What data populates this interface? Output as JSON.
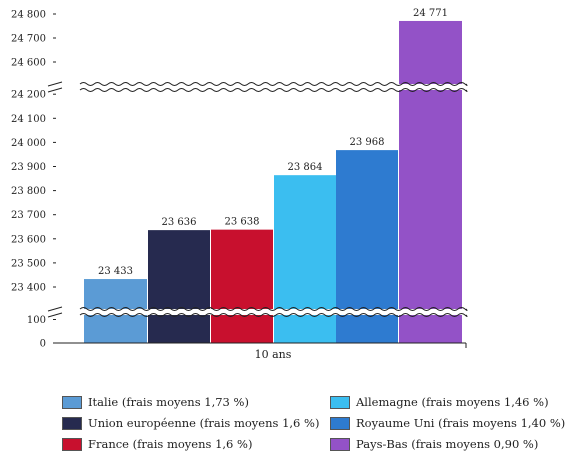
{
  "chart_data": {
    "type": "bar",
    "x_category": "10 ans",
    "y_axis": {
      "lower_segment_ticks": [
        0,
        100
      ],
      "middle_segment_ticks": [
        23400,
        23500,
        23600,
        23700,
        23800,
        23900,
        24000,
        24100,
        24200
      ],
      "upper_segment_ticks": [
        24600,
        24700,
        24800
      ],
      "axis_breaks": true
    },
    "series": [
      {
        "name": "Italie (frais moyens 1,73 %)",
        "value": 23433,
        "label": "23 433",
        "color": "#5b9bd5"
      },
      {
        "name": "Union européenne (frais moyens 1,6 %)",
        "value": 23636,
        "label": "23 636",
        "color": "#262a4f"
      },
      {
        "name": "France (frais moyens 1,6 %)",
        "value": 23638,
        "label": "23 638",
        "color": "#c8102e"
      },
      {
        "name": "Allemagne (frais moyens 1,46 %)",
        "value": 23864,
        "label": "23 864",
        "color": "#3bbef0"
      },
      {
        "name": "Royaume Uni (frais moyens 1,40 %)",
        "value": 23968,
        "label": "23 968",
        "color": "#2e7bd0"
      },
      {
        "name": "Pays-Bas (frais moyens 0,90 %)",
        "value": 24771,
        "label": "24 771",
        "color": "#9352c7"
      }
    ],
    "tick_labels": {
      "0": "0",
      "100": "100",
      "23400": "23 400",
      "23500": "23 500",
      "23600": "23 600",
      "23700": "23 700",
      "23800": "23 800",
      "23900": "23 900",
      "24000": "24 000",
      "24100": "24 100",
      "24200": "24 200",
      "24600": "24 600",
      "24700": "24 700",
      "24800": "24 800"
    },
    "legend_placement": "bottom",
    "grid": false
  },
  "legend": [
    {
      "label": "Italie (frais moyens 1,73 %)",
      "color": "#5b9bd5"
    },
    {
      "label": "Union européenne (frais moyens 1,6 %)",
      "color": "#262a4f"
    },
    {
      "label": "France (frais moyens 1,6 %)",
      "color": "#c8102e"
    },
    {
      "label": "Allemagne (frais moyens 1,46 %)",
      "color": "#3bbef0"
    },
    {
      "label": "Royaume Uni (frais moyens 1,40 %)",
      "color": "#2e7bd0"
    },
    {
      "label": "Pays-Bas (frais moyens 0,90 %)",
      "color": "#9352c7"
    }
  ]
}
